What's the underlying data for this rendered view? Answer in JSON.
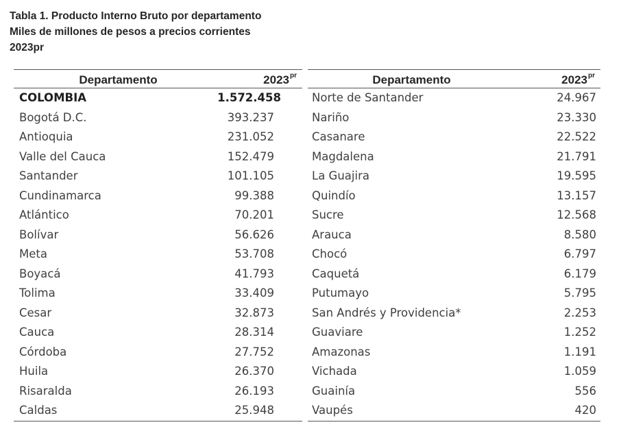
{
  "caption": {
    "line1": "Tabla 1. Producto Interno Bruto por departamento",
    "line2": "Miles de millones de pesos a precios corrientes",
    "line3": "2023pr"
  },
  "table": {
    "header_col1": "Departamento",
    "header_col2": "2023",
    "header_col2_sup": "pr",
    "left_rows": [
      {
        "name": "COLOMBIA",
        "value": "1.572.458"
      },
      {
        "name": "Bogotá D.C.",
        "value": "393.237"
      },
      {
        "name": "Antioquia",
        "value": "231.052"
      },
      {
        "name": "Valle del Cauca",
        "value": "152.479"
      },
      {
        "name": "Santander",
        "value": "101.105"
      },
      {
        "name": "Cundinamarca",
        "value": "99.388"
      },
      {
        "name": "Atlántico",
        "value": "70.201"
      },
      {
        "name": "Bolívar",
        "value": "56.626"
      },
      {
        "name": "Meta",
        "value": "53.708"
      },
      {
        "name": "Boyacá",
        "value": "41.793"
      },
      {
        "name": "Tolima",
        "value": "33.409"
      },
      {
        "name": "Cesar",
        "value": "32.873"
      },
      {
        "name": "Cauca",
        "value": "28.314"
      },
      {
        "name": "Córdoba",
        "value": "27.752"
      },
      {
        "name": "Huila",
        "value": "26.370"
      },
      {
        "name": "Risaralda",
        "value": "26.193"
      },
      {
        "name": "Caldas",
        "value": "25.948"
      }
    ],
    "right_rows": [
      {
        "name": "Norte de Santander",
        "value": "24.967"
      },
      {
        "name": "Nariño",
        "value": "23.330"
      },
      {
        "name": "Casanare",
        "value": "22.522"
      },
      {
        "name": "Magdalena",
        "value": "21.791"
      },
      {
        "name": "La Guajira",
        "value": "19.595"
      },
      {
        "name": "Quindío",
        "value": "13.157"
      },
      {
        "name": "Sucre",
        "value": "12.568"
      },
      {
        "name": "Arauca",
        "value": "8.580"
      },
      {
        "name": "Chocó",
        "value": "6.797"
      },
      {
        "name": "Caquetá",
        "value": "6.179"
      },
      {
        "name": "Putumayo",
        "value": "5.795"
      },
      {
        "name": "San Andrés y Providencia*",
        "value": "2.253"
      },
      {
        "name": "Guaviare",
        "value": "1.252"
      },
      {
        "name": "Amazonas",
        "value": "1.191"
      },
      {
        "name": "Vichada",
        "value": "1.059"
      },
      {
        "name": "Guainía",
        "value": "556"
      },
      {
        "name": "Vaupés",
        "value": "420"
      }
    ]
  }
}
